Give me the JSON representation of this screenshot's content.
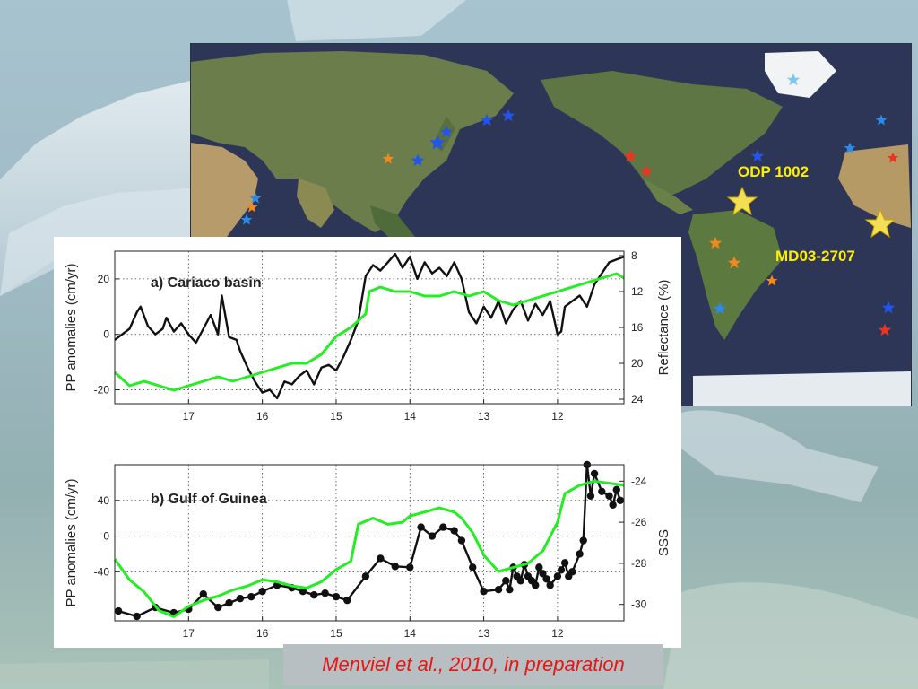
{
  "colors": {
    "green_series": "#22ee22",
    "black_series": "#111111",
    "site_label": "#ffee00",
    "citation_text": "#e01818",
    "ocean": "#2e3658"
  },
  "map": {
    "site_labels": [
      "ODP 1002",
      "MD03-2707"
    ],
    "icons": [
      "star-icon"
    ]
  },
  "citation": "Menviel et al., 2010, in preparation",
  "chart_data": [
    {
      "type": "line",
      "title": "a) Cariaco basin",
      "xlabel": "",
      "ylabel": "PP anomalies (cm/yr)",
      "ylabel_right": "Reflectance (%)",
      "xlim": [
        18,
        11.1
      ],
      "x_reversed": true,
      "ylim": [
        -25,
        30
      ],
      "ylim_right": [
        24.5,
        7.5
      ],
      "right_axis_inverted": true,
      "xticks": [
        17,
        16,
        15,
        14,
        13,
        12
      ],
      "yticks": [
        20,
        0,
        -20
      ],
      "yticks_right": [
        8,
        12,
        16,
        20,
        24
      ],
      "grid": "dotted",
      "series": [
        {
          "color": "#111111",
          "axis": "left",
          "x": [
            18,
            17.9,
            17.8,
            17.7,
            17.65,
            17.55,
            17.45,
            17.35,
            17.3,
            17.2,
            17.1,
            17.0,
            16.9,
            16.8,
            16.7,
            16.6,
            16.55,
            16.45,
            16.35,
            16.3,
            16.2,
            16.1,
            16.0,
            15.9,
            15.8,
            15.7,
            15.6,
            15.5,
            15.4,
            15.3,
            15.2,
            15.1,
            15.0,
            14.9,
            14.8,
            14.7,
            14.6,
            14.5,
            14.4,
            14.3,
            14.2,
            14.1,
            14.0,
            13.9,
            13.8,
            13.7,
            13.6,
            13.5,
            13.4,
            13.3,
            13.2,
            13.1,
            13.0,
            12.9,
            12.8,
            12.7,
            12.6,
            12.5,
            12.4,
            12.3,
            12.2,
            12.1,
            12.0,
            11.95,
            11.9,
            11.8,
            11.7,
            11.6,
            11.5,
            11.4,
            11.3,
            11.2,
            11.1
          ],
          "y": [
            -2,
            0,
            2,
            8,
            10,
            3,
            0,
            2,
            6,
            1,
            4,
            0,
            -3,
            2,
            7,
            0,
            14,
            -1,
            -2,
            -6,
            -12,
            -17,
            -21,
            -20,
            -23,
            -17,
            -18,
            -15,
            -13,
            -18,
            -12,
            -11,
            -13,
            -8,
            -2,
            5,
            21,
            25,
            23,
            26,
            29,
            24,
            28,
            20,
            26,
            22,
            24,
            21,
            26,
            20,
            8,
            4,
            10,
            6,
            12,
            4,
            9,
            12,
            5,
            11,
            7,
            12,
            0,
            1,
            10,
            12,
            14,
            10,
            18,
            22,
            26,
            27,
            28
          ]
        },
        {
          "color": "#22ee22",
          "axis": "right",
          "x": [
            18,
            17.8,
            17.6,
            17.4,
            17.2,
            17.0,
            16.8,
            16.6,
            16.4,
            16.2,
            16.0,
            15.8,
            15.6,
            15.4,
            15.2,
            15.0,
            14.8,
            14.6,
            14.55,
            14.4,
            14.2,
            14.0,
            13.8,
            13.6,
            13.4,
            13.2,
            13.0,
            12.8,
            12.6,
            12.4,
            12.2,
            12.0,
            11.8,
            11.6,
            11.4,
            11.2,
            11.1
          ],
          "y": [
            21,
            22.5,
            22,
            22.5,
            23,
            22.5,
            22,
            21.5,
            22,
            21.5,
            21,
            20.5,
            20,
            20,
            19,
            17,
            16,
            14.5,
            12,
            11.5,
            12,
            12,
            12.5,
            12.5,
            12,
            12.5,
            12,
            13,
            13.5,
            13,
            12.5,
            12,
            11.5,
            11,
            10.5,
            10,
            10.5
          ]
        }
      ]
    },
    {
      "type": "line",
      "title": "b) Gulf of Guinea",
      "xlabel": "",
      "ylabel": "PP anomalies (cm/yr)",
      "ylabel_right": "SSS",
      "xlim": [
        18,
        11.1
      ],
      "x_reversed": true,
      "ylim": [
        -95,
        80
      ],
      "ylim_right": [
        -30.8,
        -23.2
      ],
      "right_axis_inverted": true,
      "xticks": [
        17,
        16,
        15,
        14,
        13,
        12
      ],
      "yticks": [
        40,
        0,
        -40
      ],
      "yticks_right": [
        -24,
        -26,
        -28,
        -30
      ],
      "grid": "dotted",
      "series": [
        {
          "color": "#111111",
          "axis": "left",
          "marker": "circle",
          "x": [
            17.95,
            17.7,
            17.45,
            17.2,
            17.0,
            16.8,
            16.6,
            16.45,
            16.3,
            16.15,
            16.0,
            15.8,
            15.6,
            15.45,
            15.3,
            15.15,
            15.0,
            14.85,
            14.6,
            14.4,
            14.2,
            14.0,
            13.85,
            13.7,
            13.55,
            13.4,
            13.3,
            13.15,
            13.0,
            12.8,
            12.7,
            12.65,
            12.6,
            12.55,
            12.5,
            12.45,
            12.4,
            12.35,
            12.3,
            12.25,
            12.2,
            12.15,
            12.1,
            12.0,
            11.95,
            11.9,
            11.85,
            11.8,
            11.7,
            11.65,
            11.6,
            11.55,
            11.5,
            11.4,
            11.3,
            11.25,
            11.2,
            11.15
          ],
          "y": [
            -84,
            -90,
            -80,
            -86,
            -82,
            -65,
            -80,
            -75,
            -70,
            -68,
            -62,
            -55,
            -58,
            -62,
            -66,
            -64,
            -68,
            -72,
            -45,
            -25,
            -34,
            -35,
            10,
            0,
            10,
            6,
            -5,
            -35,
            -62,
            -60,
            -50,
            -60,
            -35,
            -45,
            -50,
            -32,
            -45,
            -50,
            -55,
            -35,
            -42,
            -48,
            -55,
            -45,
            -38,
            -30,
            -45,
            -40,
            -20,
            -5,
            80,
            45,
            70,
            50,
            45,
            35,
            52,
            40
          ]
        },
        {
          "color": "#22ee22",
          "axis": "right",
          "x": [
            18,
            17.8,
            17.6,
            17.4,
            17.2,
            17.0,
            16.8,
            16.6,
            16.4,
            16.2,
            16.0,
            15.8,
            15.6,
            15.4,
            15.2,
            15.0,
            14.8,
            14.7,
            14.5,
            14.3,
            14.1,
            14.0,
            13.8,
            13.6,
            13.4,
            13.3,
            13.15,
            13.0,
            12.8,
            12.6,
            12.4,
            12.2,
            12.0,
            11.9,
            11.7,
            11.5,
            11.3,
            11.1
          ],
          "y": [
            -27.8,
            -28.8,
            -29.4,
            -30.3,
            -30.6,
            -30.1,
            -29.8,
            -29.6,
            -29.3,
            -29.1,
            -28.8,
            -28.9,
            -29.1,
            -29.2,
            -28.9,
            -28.3,
            -27.9,
            -26.1,
            -25.8,
            -26.1,
            -26.0,
            -25.7,
            -25.5,
            -25.3,
            -25.5,
            -25.8,
            -26.5,
            -27.6,
            -28.4,
            -28.2,
            -28.0,
            -27.4,
            -26.0,
            -24.6,
            -24.2,
            -24.0,
            -24.1,
            -24.2
          ]
        }
      ]
    }
  ]
}
